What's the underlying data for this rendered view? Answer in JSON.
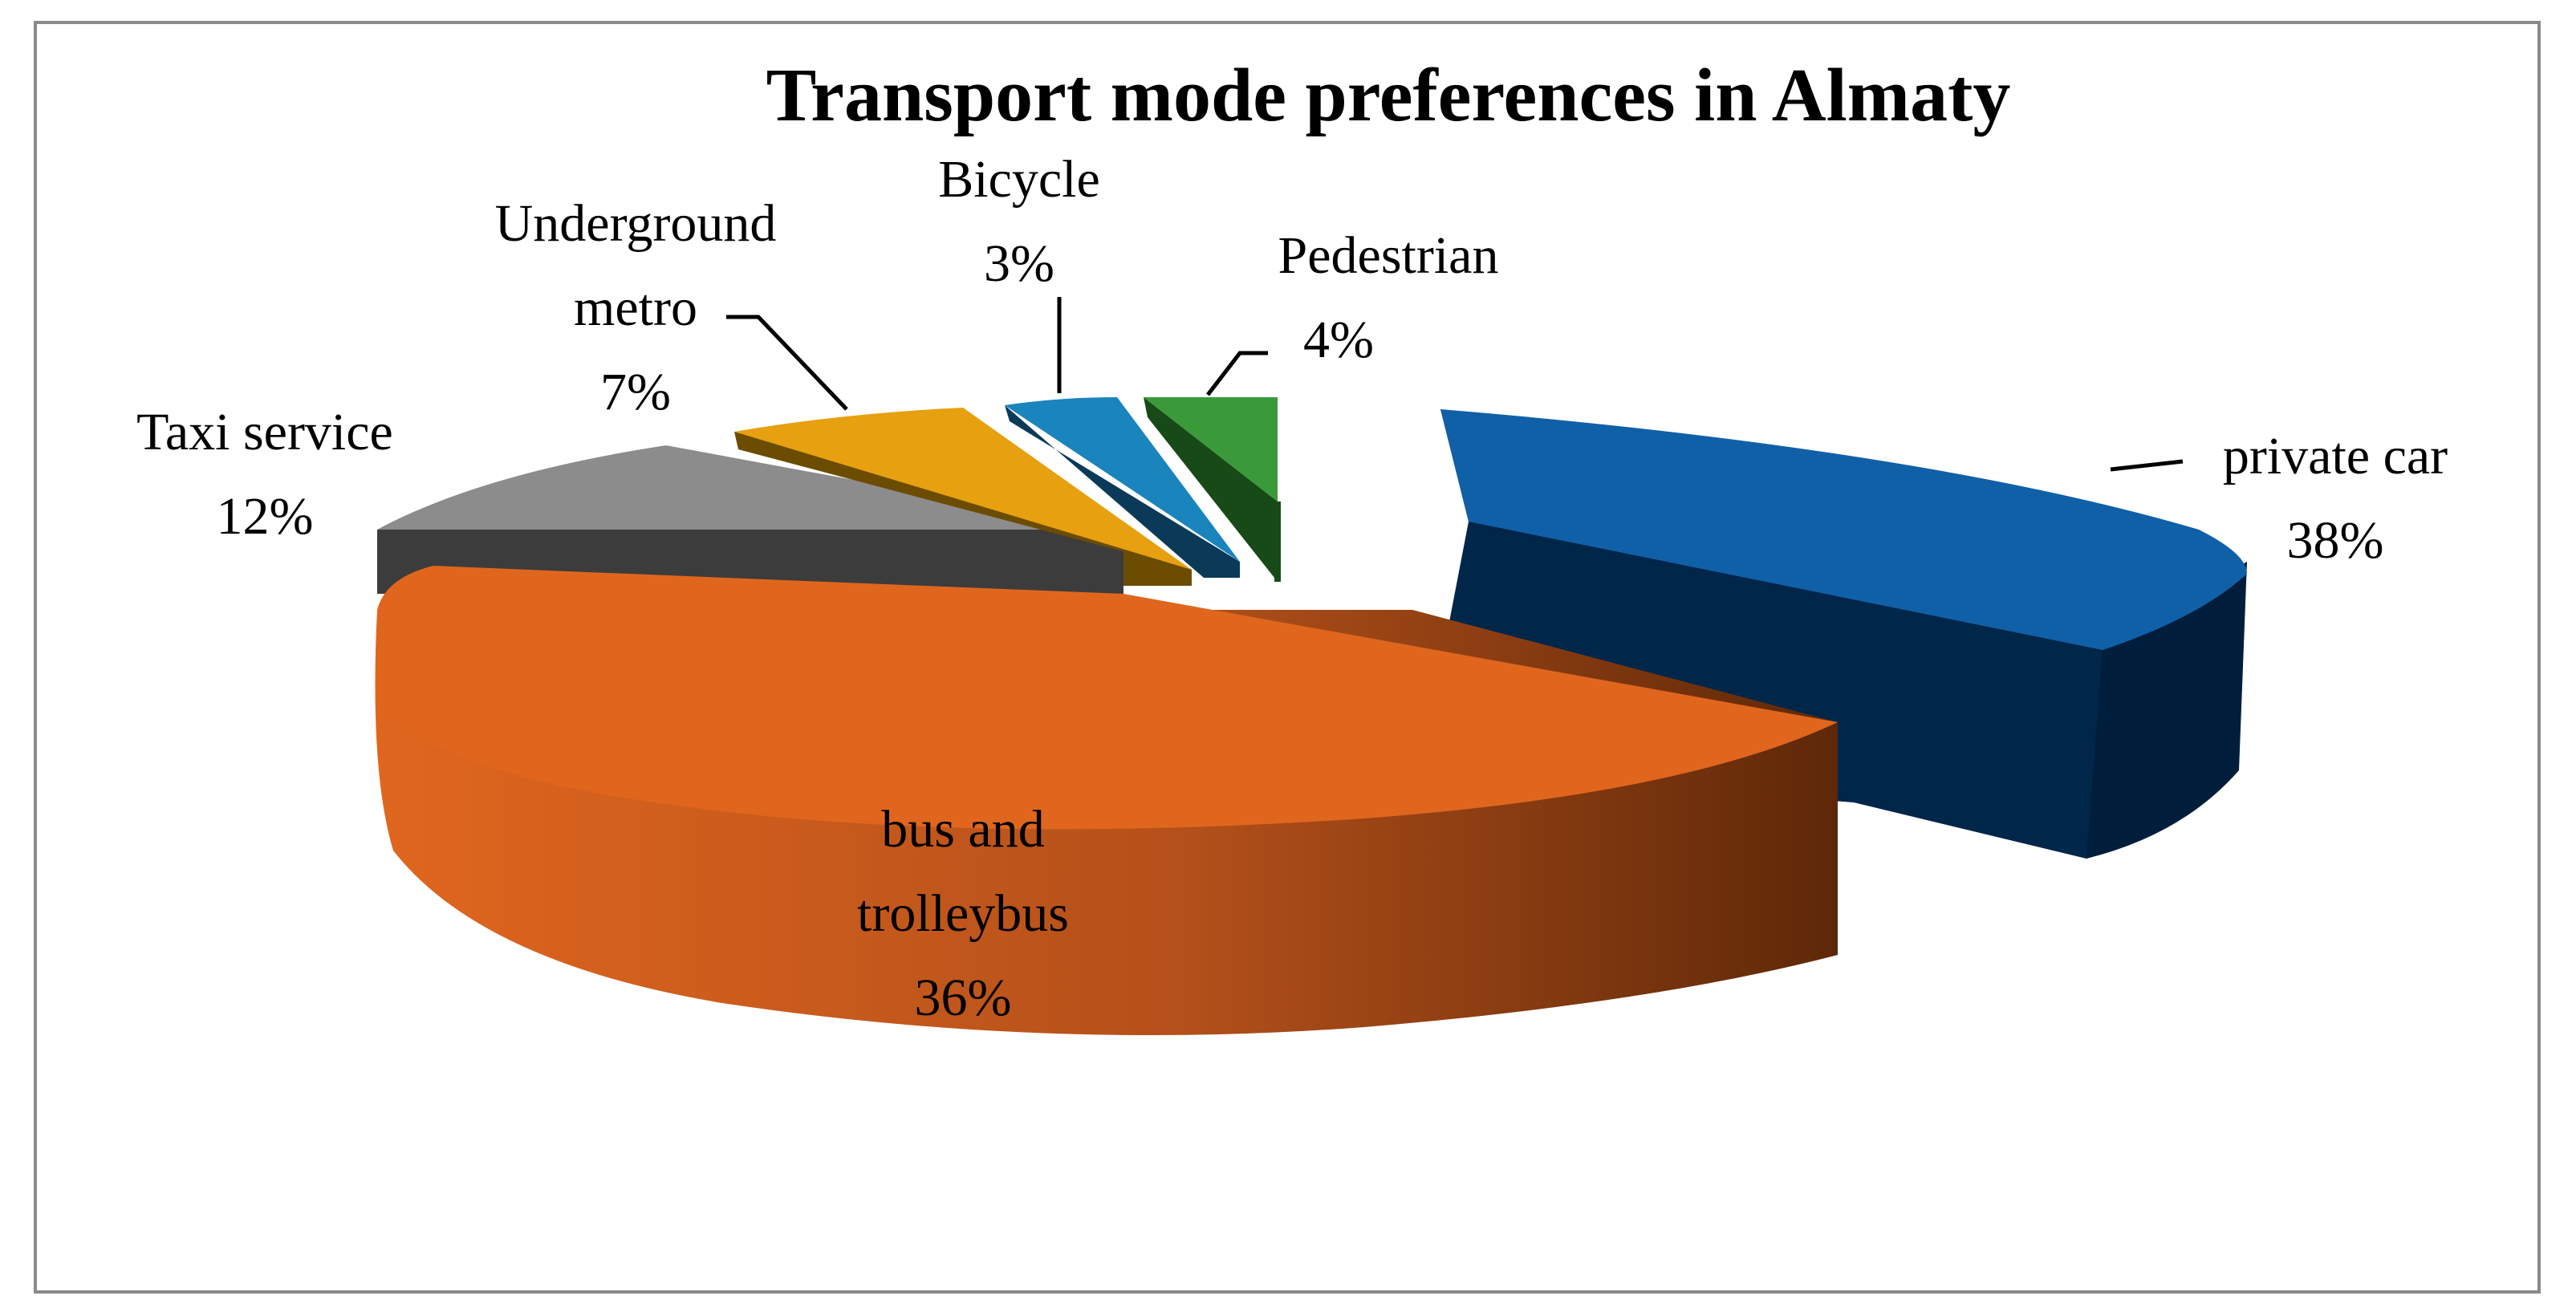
{
  "chart_data": {
    "type": "pie",
    "title": "Transport mode preferences in Almaty",
    "slices": [
      {
        "name": "private car",
        "value": 38,
        "label": "38%",
        "color": "#1060a8",
        "side": "#00264a"
      },
      {
        "name": "bus and trolleybus",
        "value": 36,
        "label": "36%",
        "color": "#e0661e",
        "side": "#8a3a0a"
      },
      {
        "name": "Taxi service",
        "value": 12,
        "label": "12%",
        "color": "#8c8c8c",
        "side": "#404040"
      },
      {
        "name": "Underground metro",
        "value": 7,
        "label": "7%",
        "color": "#e6a010",
        "side": "#6b4c00"
      },
      {
        "name": "Bicycle",
        "value": 3,
        "label": "3%",
        "color": "#1a84bc",
        "side": "#0b3a58"
      },
      {
        "name": "Pedestrian",
        "value": 4,
        "label": "4%",
        "color": "#3a9a3a",
        "side": "#174a17"
      }
    ],
    "legend": "none",
    "style": "3d-exploded-pie"
  }
}
